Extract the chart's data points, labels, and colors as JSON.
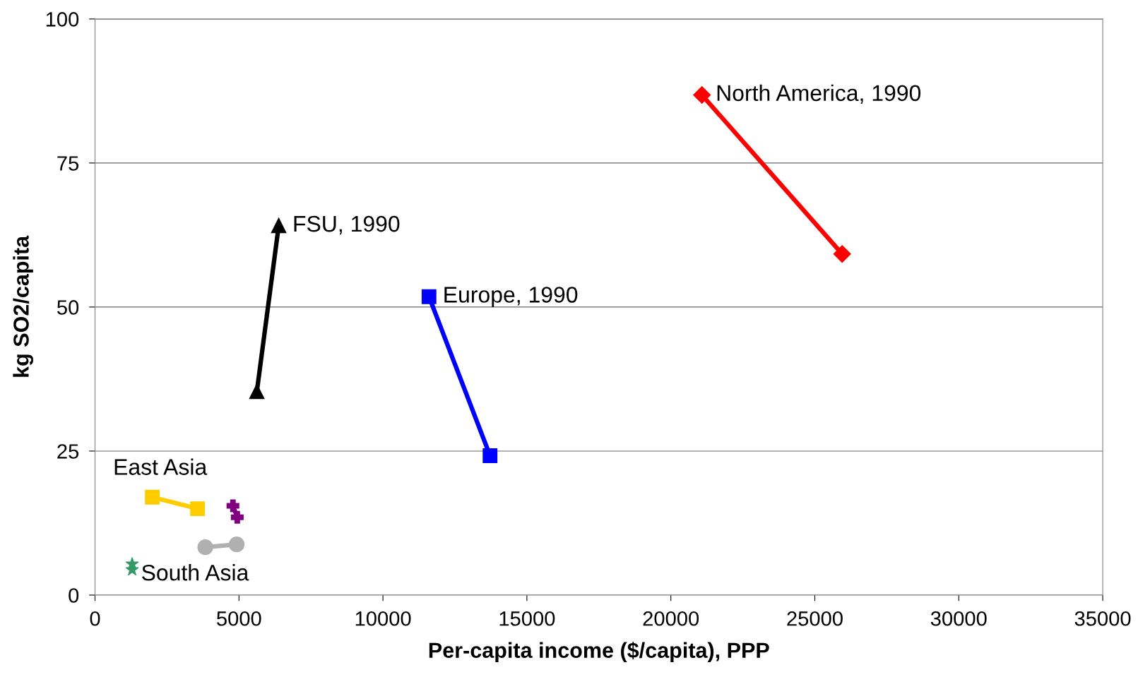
{
  "chart_data": {
    "type": "line",
    "xlabel": "Per-capita income ($/capita), PPP",
    "ylabel": "kg SO2/capita",
    "xlim": [
      0,
      35000
    ],
    "xticks": [
      0,
      5000,
      10000,
      15000,
      20000,
      25000,
      30000,
      35000
    ],
    "ylim": [
      0,
      100
    ],
    "yticks": [
      0,
      25,
      50,
      75,
      100
    ],
    "grid": "y",
    "series": [
      {
        "color": "#ff0000",
        "marker": "diamond",
        "x": [
          21080,
          25950
        ],
        "values": [
          86.8,
          59.2
        ]
      },
      {
        "color": "#000000",
        "marker": "triangle",
        "x": [
          6380,
          5620
        ],
        "values": [
          64.1,
          35.3
        ]
      },
      {
        "color": "#0000ff",
        "marker": "square",
        "x": [
          11600,
          13720
        ],
        "values": [
          51.8,
          24.2
        ]
      },
      {
        "color": "#ffcc00",
        "marker": "square",
        "x": [
          1990,
          3560
        ],
        "values": [
          17.0,
          15.0
        ]
      },
      {
        "color": "#800080",
        "marker": "cross",
        "x": [
          4790,
          4940
        ],
        "values": [
          15.5,
          13.5
        ]
      },
      {
        "color": "#b0b0b0",
        "marker": "circle",
        "x": [
          3830,
          4920
        ],
        "values": [
          8.3,
          8.8
        ]
      },
      {
        "type": "scatter",
        "color": "#339966",
        "marker": "star",
        "x": [
          1290,
          1290
        ],
        "values": [
          5.4,
          4.4
        ]
      }
    ],
    "annotations": [
      {
        "text": "North America, 1990",
        "x": 21080,
        "y": 86.8
      },
      {
        "text": "FSU, 1990",
        "x": 6380,
        "y": 64.1
      },
      {
        "text": "Europe, 1990",
        "x": 11600,
        "y": 51.8
      },
      {
        "text": "East Asia",
        "x": 1990,
        "y": 17.0
      },
      {
        "text": "South Asia",
        "x": 1290,
        "y": 4.4
      }
    ]
  }
}
